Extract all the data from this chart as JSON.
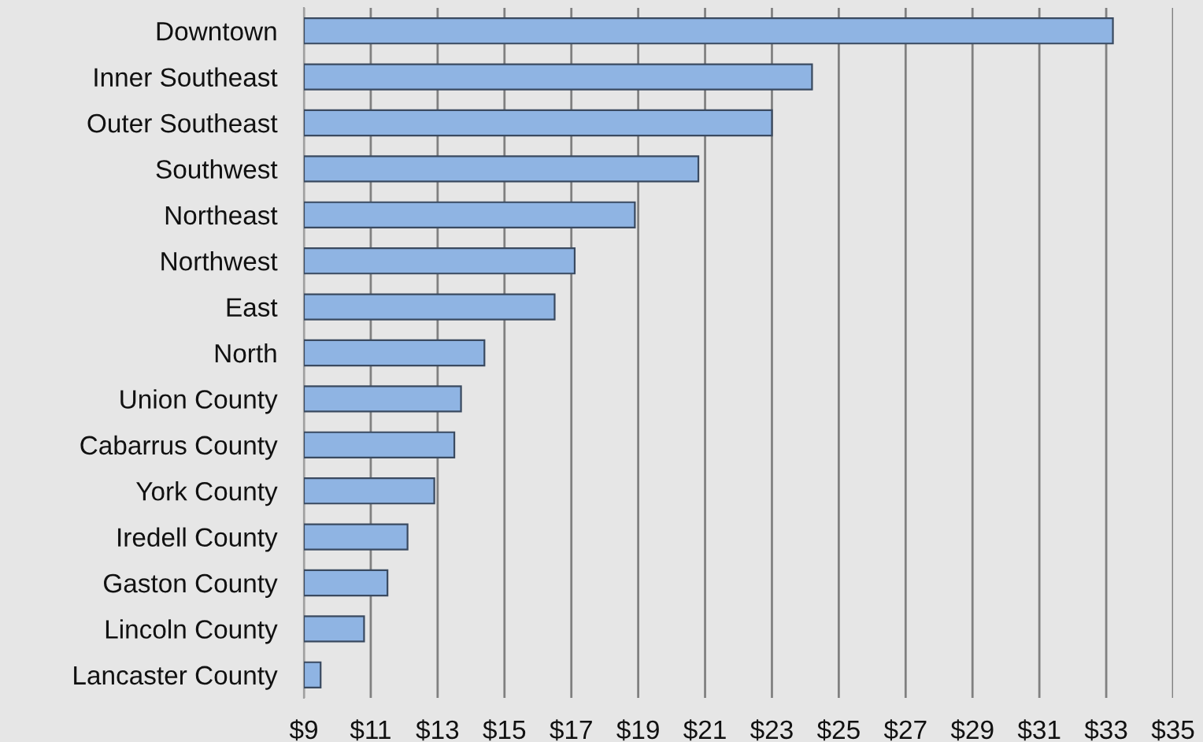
{
  "chart_data": {
    "type": "bar",
    "orientation": "horizontal",
    "categories": [
      "Downtown",
      "Inner Southeast",
      "Outer Southeast",
      "Southwest",
      "Northeast",
      "Northwest",
      "East",
      "North",
      "Union County",
      "Cabarrus County",
      "York County",
      "Iredell County",
      "Gaston County",
      "Lincoln County",
      "Lancaster County"
    ],
    "values": [
      33.2,
      24.2,
      23.0,
      20.8,
      18.9,
      17.1,
      16.5,
      14.4,
      13.7,
      13.5,
      12.9,
      12.1,
      11.5,
      10.8,
      9.5
    ],
    "color": "#8fb4e3",
    "xlim": [
      9,
      35
    ],
    "xticks": [
      {
        "value": 9,
        "label": "$9"
      },
      {
        "value": 11,
        "label": "$11"
      },
      {
        "value": 13,
        "label": "$13"
      },
      {
        "value": 15,
        "label": "$15"
      },
      {
        "value": 17,
        "label": "$17"
      },
      {
        "value": 19,
        "label": "$19"
      },
      {
        "value": 21,
        "label": "$21"
      },
      {
        "value": 23,
        "label": "$23"
      },
      {
        "value": 25,
        "label": "$25"
      },
      {
        "value": 27,
        "label": "$27"
      },
      {
        "value": 29,
        "label": "$29"
      },
      {
        "value": 31,
        "label": "$31"
      },
      {
        "value": 33,
        "label": "$33"
      },
      {
        "value": 35,
        "label": "$35"
      }
    ],
    "grid": "x"
  }
}
